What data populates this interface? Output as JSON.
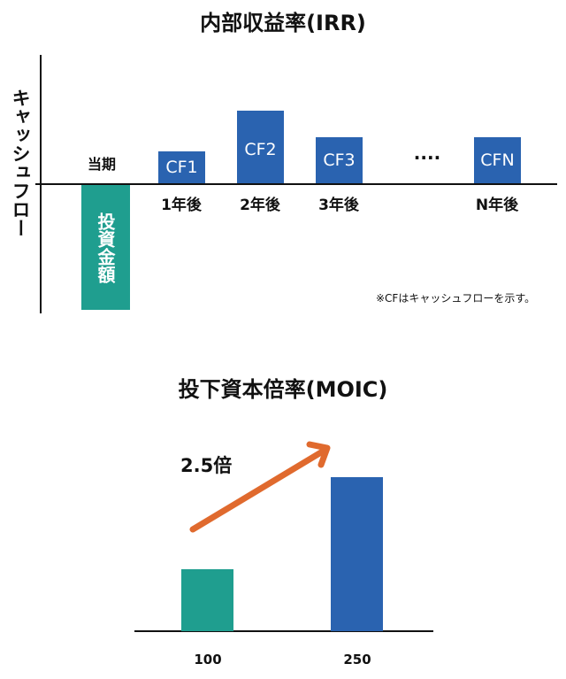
{
  "irr": {
    "title": "内部収益率(IRR)",
    "y_axis_label": "キャッシュフロー",
    "current_period_label": "当期",
    "investment_label": "投資金額",
    "cash_flows": [
      {
        "label": "CF1",
        "period": "1年後"
      },
      {
        "label": "CF2",
        "period": "2年後"
      },
      {
        "label": "CF3",
        "period": "3年後"
      },
      {
        "label": "CFN",
        "period": "N年後"
      }
    ],
    "ellipsis": "····",
    "note": "※CFはキャッシュフローを示す。"
  },
  "moic": {
    "title": "投下資本倍率(MOIC)",
    "multiplier_label": "2.5倍",
    "bars": [
      {
        "label": "100",
        "value": 100
      },
      {
        "label": "250",
        "value": 250
      }
    ]
  },
  "colors": {
    "blue": "#2a63b0",
    "teal": "#1f9e8f",
    "arrow": "#e06a2e"
  }
}
